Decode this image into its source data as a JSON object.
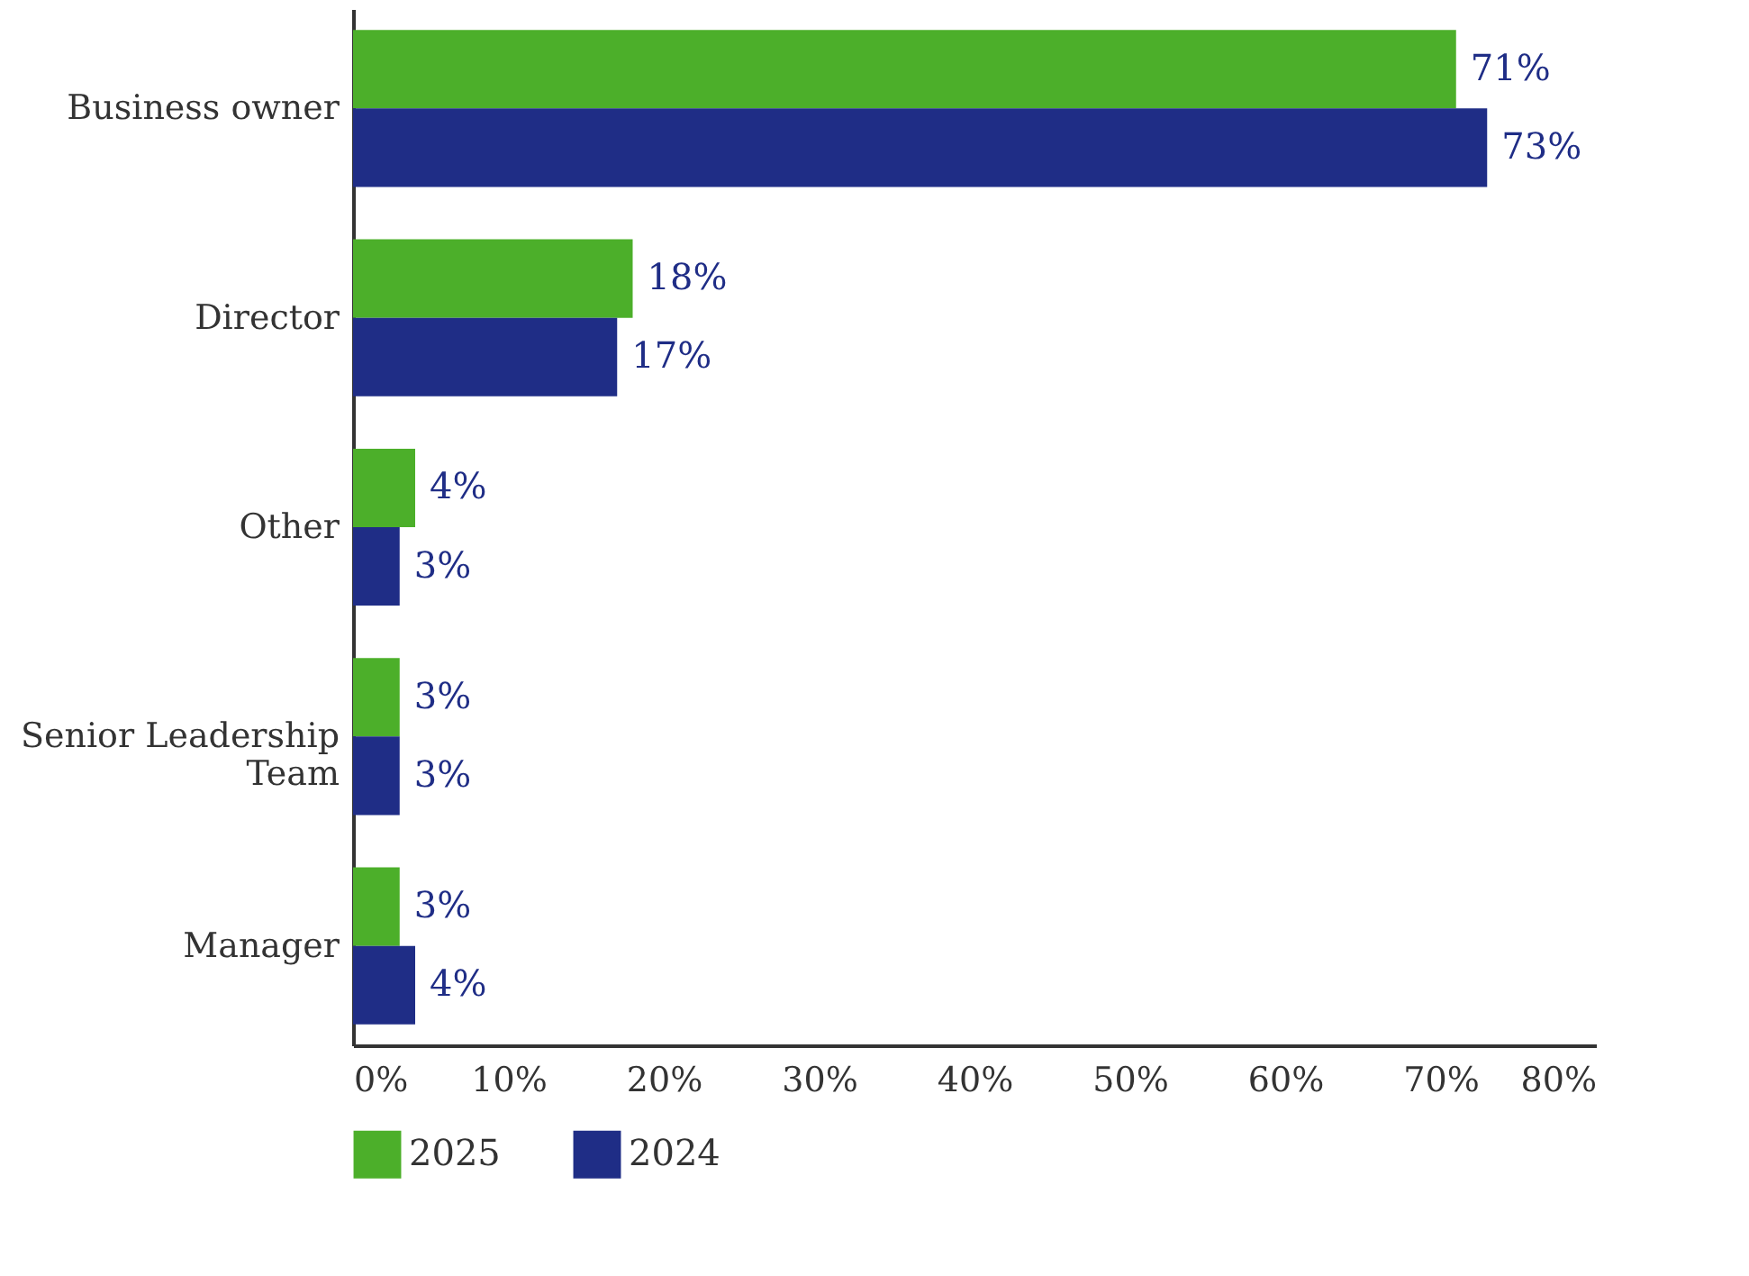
{
  "chart_data": {
    "type": "bar",
    "orientation": "horizontal",
    "categories": [
      "Business owner",
      "Director",
      "Other",
      "Senior Leadership Team",
      "Manager"
    ],
    "series": [
      {
        "name": "2025",
        "color": "#4caf2a",
        "values": [
          71,
          18,
          4,
          3,
          3
        ],
        "value_labels": [
          "71%",
          "18%",
          "4%",
          "3%",
          "3%"
        ]
      },
      {
        "name": "2024",
        "color": "#1f2d86",
        "values": [
          73,
          17,
          3,
          3,
          4
        ],
        "value_labels": [
          "73%",
          "17%",
          "3%",
          "3%",
          "4%"
        ]
      }
    ],
    "xlim": [
      0,
      80
    ],
    "xticks": [
      {
        "value": 0,
        "label": "0%"
      },
      {
        "value": 10,
        "label": "10%"
      },
      {
        "value": 20,
        "label": "20%"
      },
      {
        "value": 30,
        "label": "30%"
      },
      {
        "value": 40,
        "label": "40%"
      },
      {
        "value": 50,
        "label": "50%"
      },
      {
        "value": 60,
        "label": "60%"
      },
      {
        "value": 70,
        "label": "70%"
      },
      {
        "value": 80,
        "label": "80%"
      }
    ],
    "grid": false,
    "legend": "bottom"
  }
}
